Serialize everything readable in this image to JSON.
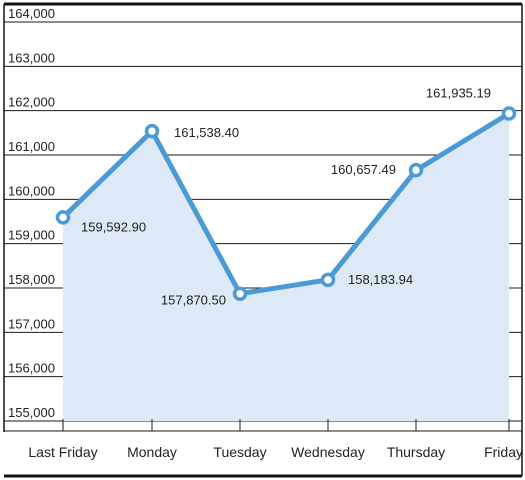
{
  "chart_data": {
    "type": "line",
    "title": "",
    "xlabel": "",
    "ylabel": "",
    "categories": [
      "Last Friday",
      "Monday",
      "Tuesday",
      "Wednesday",
      "Thursday",
      "Friday"
    ],
    "values": [
      159592.9,
      161538.4,
      157870.5,
      158183.94,
      160657.49,
      161935.19
    ],
    "data_labels": [
      "159,592.90",
      "161,538.40",
      "157,870.50",
      "158,183.94",
      "160,657.49",
      "161,935.19"
    ],
    "y_ticks": [
      155000,
      156000,
      157000,
      158000,
      159000,
      160000,
      161000,
      162000,
      163000,
      164000
    ],
    "y_tick_labels": [
      "155,000",
      "156,000",
      "157,000",
      "158,000",
      "159,000",
      "160,000",
      "161,000",
      "162,000",
      "163,000",
      "164,000"
    ],
    "ylim": [
      155000,
      164000
    ],
    "grid": true,
    "colors": {
      "line": "#4a9ad6",
      "fill": "#dde9f7",
      "grid": "#1a1a1a",
      "frame": "#111111"
    }
  }
}
